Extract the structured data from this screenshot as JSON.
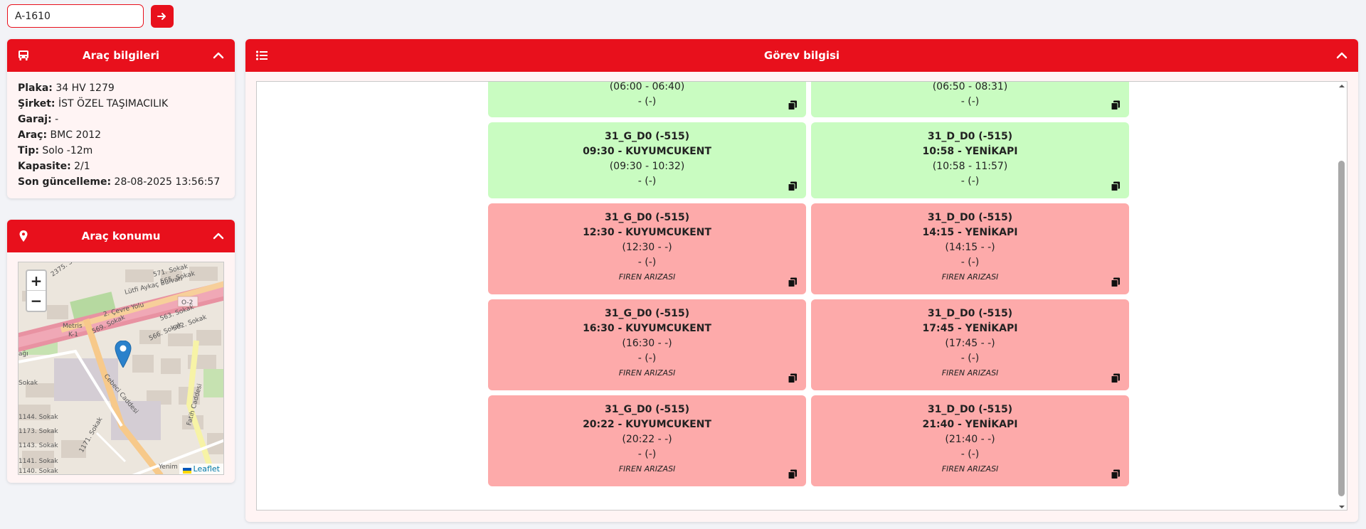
{
  "search": {
    "value": "A-1610"
  },
  "vehicle_card": {
    "title": "Araç bilgileri",
    "rows": [
      {
        "label": "Plaka:",
        "value": "34 HV 1279"
      },
      {
        "label": "Şirket:",
        "value": "İST ÖZEL TAŞIMACILIK"
      },
      {
        "label": "Garaj:",
        "value": "-"
      },
      {
        "label": "Araç:",
        "value": "BMC 2012"
      },
      {
        "label": "Tip:",
        "value": "Solo -12m"
      },
      {
        "label": "Kapasite:",
        "value": "2/1"
      },
      {
        "label": "Son güncelleme:",
        "value": "28-08-2025 13:56:57"
      }
    ]
  },
  "location_card": {
    "title": "Araç konumu",
    "zoom_in": "+",
    "zoom_out": "−",
    "attribution": "Leaflet",
    "map_labels": {
      "lutfi": "Lütfi Aykaç Bulvarı",
      "cevre": "2. Çevre Yolu",
      "o2": "O-2",
      "metris": "Metris",
      "k1": "K-1",
      "cebeci": "Cebeci Caddesi",
      "fatih": "Fatih Caddesi",
      "yenim": "Yenim",
      "s2375": "2375. So",
      "s565": "565. Sokak",
      "s571": "571. Sokak",
      "s563": "563. Sokak",
      "s562": "562. Sokak",
      "s569": "569. Sokak",
      "s566": "566. Sokak",
      "s1144": "1144. Sokak",
      "s1173": "1173. Sokak",
      "s1143": "1143. Sokak",
      "s1141": "1141. Sokak",
      "s1140": "1140. Sokak",
      "s1171": "1171. Sokak",
      "sokak": "Sokak",
      "agi": "ağı"
    }
  },
  "task_card": {
    "title": "Görev bilgisi",
    "tasks": [
      {
        "status": "green",
        "first": true,
        "time_range": "(06:00 - 06:40)",
        "extra": "- (-)"
      },
      {
        "status": "green",
        "first": true,
        "time_range": "(06:50 - 08:31)",
        "extra": "- (-)"
      },
      {
        "status": "green",
        "code": "31_G_D0 (-515)",
        "departure": "09:30 - KUYUMCUKENT",
        "time_range": "(09:30 - 10:32)",
        "extra": "- (-)"
      },
      {
        "status": "green",
        "code": "31_D_D0 (-515)",
        "departure": "10:58 - YENİKAPI",
        "time_range": "(10:58 - 11:57)",
        "extra": "- (-)"
      },
      {
        "status": "red",
        "code": "31_G_D0 (-515)",
        "departure": "12:30 - KUYUMCUKENT",
        "time_range": "(12:30 - -)",
        "extra": "- (-)",
        "reason": "FIREN ARIZASI"
      },
      {
        "status": "red",
        "code": "31_D_D0 (-515)",
        "departure": "14:15 - YENİKAPI",
        "time_range": "(14:15 - -)",
        "extra": "- (-)",
        "reason": "FIREN ARIZASI"
      },
      {
        "status": "red",
        "code": "31_G_D0 (-515)",
        "departure": "16:30 - KUYUMCUKENT",
        "time_range": "(16:30 - -)",
        "extra": "- (-)",
        "reason": "FIREN ARIZASI"
      },
      {
        "status": "red",
        "code": "31_D_D0 (-515)",
        "departure": "17:45 - YENİKAPI",
        "time_range": "(17:45 - -)",
        "extra": "- (-)",
        "reason": "FIREN ARIZASI"
      },
      {
        "status": "red",
        "code": "31_G_D0 (-515)",
        "departure": "20:22 - KUYUMCUKENT",
        "time_range": "(20:22 - -)",
        "extra": "- (-)",
        "reason": "FIREN ARIZASI"
      },
      {
        "status": "red",
        "code": "31_D_D0 (-515)",
        "departure": "21:40 - YENİKAPI",
        "time_range": "(21:40 - -)",
        "extra": "- (-)",
        "reason": "FIREN ARIZASI"
      }
    ]
  },
  "colors": {
    "accent": "#e8101c",
    "green_card": "#c9fcc1",
    "red_card": "#fdaaaa",
    "panel_bg": "#fff4f4"
  }
}
